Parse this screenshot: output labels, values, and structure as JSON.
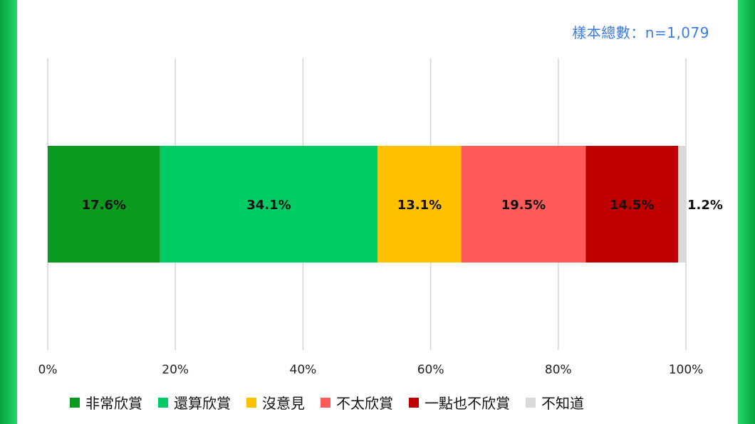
{
  "sample_size_label": "樣本總數：n=1,079",
  "chart_data": {
    "type": "bar",
    "orientation": "horizontal",
    "stacked": true,
    "xlim": [
      0,
      100
    ],
    "x_ticks": [
      "0%",
      "20%",
      "40%",
      "60%",
      "80%",
      "100%"
    ],
    "grid": true,
    "legend_position": "bottom",
    "series": [
      {
        "name": "非常欣賞",
        "value": 17.6,
        "label": "17.6%",
        "color": "#0a9a1e"
      },
      {
        "name": "還算欣賞",
        "value": 34.1,
        "label": "34.1%",
        "color": "#00cc66"
      },
      {
        "name": "沒意見",
        "value": 13.1,
        "label": "13.1%",
        "color": "#ffc000"
      },
      {
        "name": "不太欣賞",
        "value": 19.5,
        "label": "19.5%",
        "color": "#ff5b5b"
      },
      {
        "name": "一點也不欣賞",
        "value": 14.5,
        "label": "14.5%",
        "color": "#c00000"
      },
      {
        "name": "不知道",
        "value": 1.2,
        "label": "1.2%",
        "color": "#d9d9d9"
      }
    ]
  }
}
